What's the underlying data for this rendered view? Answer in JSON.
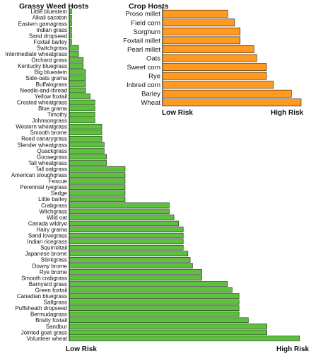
{
  "chart_data": [
    {
      "type": "bar",
      "orientation": "horizontal",
      "title": "Grassy Weed Hosts",
      "xlabel_low": "Low Risk",
      "xlabel_high": "High Risk",
      "xlim": [
        0,
        100
      ],
      "grid": false,
      "bar_color": "#5cc23c",
      "categories": [
        "Little bluestem",
        "Alkali sacaton",
        "Eastern gamagrass",
        "Indian grass",
        "Sand dropseed",
        "Foxtail barley",
        "Switchgrass",
        "Intermediate wheatgrass",
        "Orchard grass",
        "Kentucky bluegrass",
        "Big bluestem",
        "Side-oats grama",
        "Buffalograss",
        "Needle-and-thread",
        "Yellow foxtail",
        "Crested wheatgrass",
        "Blue grama",
        "Timothy",
        "Johnsongrass",
        "Western wheatgrass",
        "Smooth brome",
        "Reed canarygrass",
        "Slender wheatgrass",
        "Quackgrass",
        "Goosegrass",
        "Tall wheatgrass",
        "Tall oatgrass",
        "American sloughgrass",
        "Fescue",
        "Perennial ryegrass",
        "Sedge",
        "Little barley",
        "Crabgrass",
        "Witchgrass",
        "Wild oat",
        "Canada wildrye",
        "Hairy grama",
        "Sand lovegrass",
        "Indian ricegrass",
        "Squirreltail",
        "Japanese brome",
        "Stinkgrass",
        "Downy brome",
        "Rye brome",
        "Smooth crabgrass",
        "Barnyard grass",
        "Green foxtail",
        "Canadian bluegrass",
        "Saltgrass",
        "Puffsheath dropseed",
        "Bermudagrass",
        "Bristly foxtail",
        "Sandbur",
        "Jointed goat grass",
        "Volunteer wheat"
      ],
      "values": [
        1,
        1,
        1,
        1,
        1,
        1,
        4,
        4,
        6,
        6,
        7,
        7,
        7,
        7,
        9,
        11,
        11,
        11,
        11,
        14,
        14,
        14,
        15,
        15,
        16,
        16,
        24,
        24,
        24,
        24,
        24,
        24,
        43,
        43,
        45,
        47,
        49,
        49,
        49,
        49,
        51,
        52,
        53,
        57,
        57,
        68,
        70,
        73,
        73,
        73,
        73,
        77,
        85,
        85,
        99
      ]
    },
    {
      "type": "bar",
      "orientation": "horizontal",
      "title": "Crop Hosts",
      "xlabel_low": "Low Risk",
      "xlabel_high": "High Risk",
      "xlim": [
        0,
        100
      ],
      "grid": false,
      "bar_color": "#ff9a1f",
      "categories": [
        "Proso millet",
        "Field corn",
        "Sorghum",
        "Foxtail millet",
        "Pearl millet",
        "Oats",
        "Sweet corn",
        "Rye",
        "Inbred corn",
        "Barley",
        "Wheat"
      ],
      "values": [
        47,
        52,
        56,
        56,
        66,
        68,
        75,
        75,
        80,
        93,
        100
      ]
    }
  ]
}
